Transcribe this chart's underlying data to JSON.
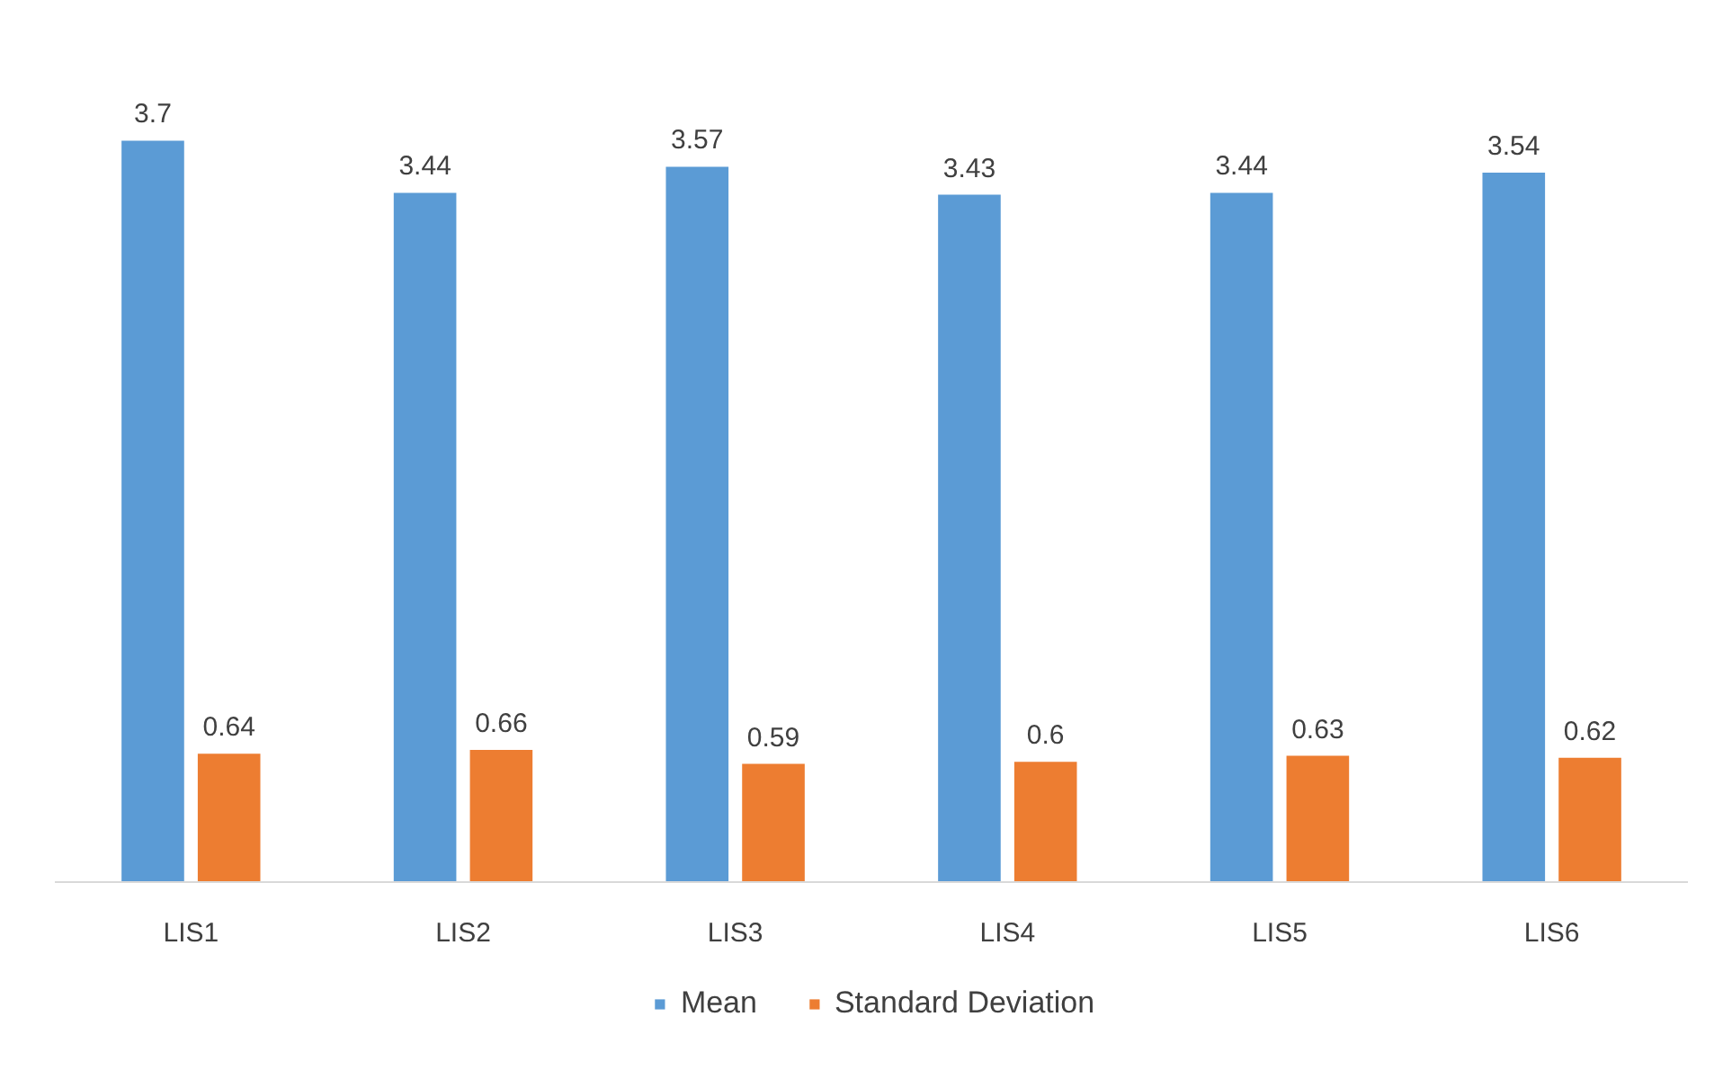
{
  "chart_data": {
    "type": "bar",
    "categories": [
      "LIS1",
      "LIS2",
      "LIS3",
      "LIS4",
      "LIS5",
      "LIS6"
    ],
    "series": [
      {
        "name": "Mean",
        "color": "#5b9bd5",
        "values": [
          3.7,
          3.44,
          3.57,
          3.43,
          3.44,
          3.54
        ]
      },
      {
        "name": "Standard Deviation",
        "color": "#ed7d31",
        "values": [
          0.64,
          0.66,
          0.59,
          0.6,
          0.63,
          0.62
        ]
      }
    ],
    "data_labels": true,
    "grid": false,
    "legend": "bottom"
  }
}
